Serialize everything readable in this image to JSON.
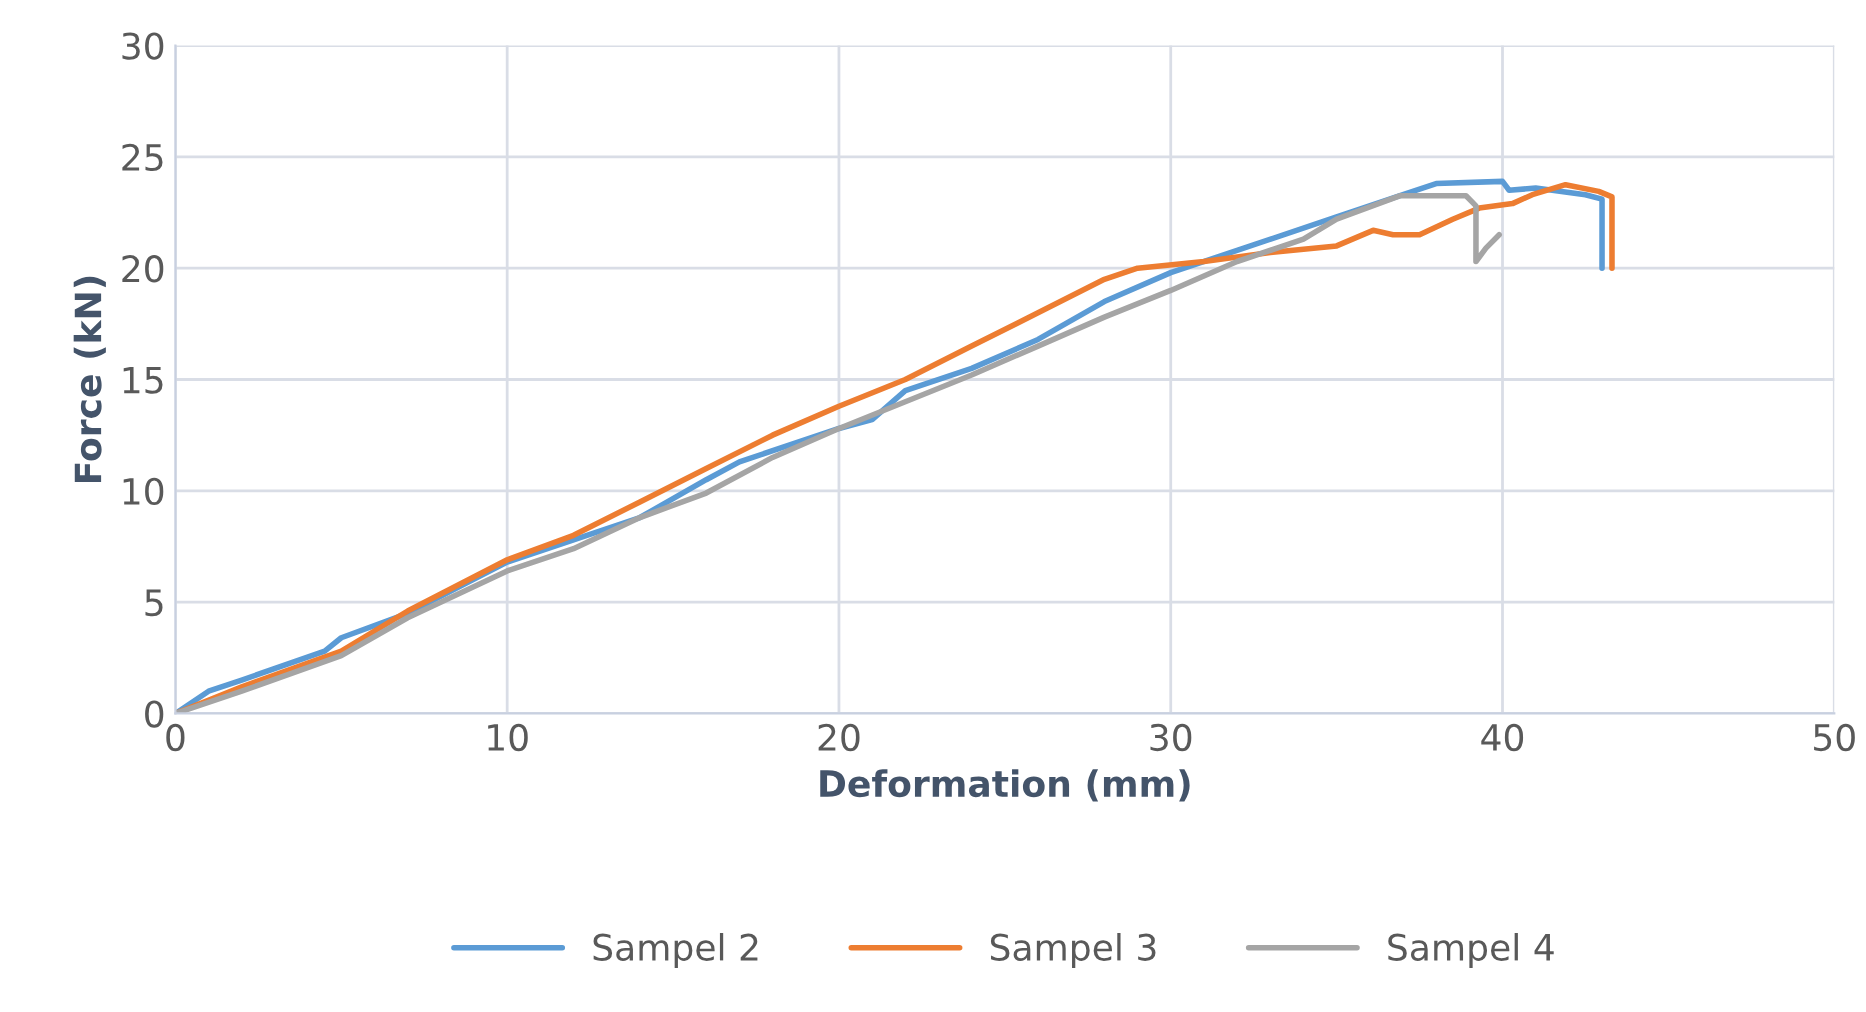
{
  "chart_data": {
    "type": "line",
    "xlabel": "Deformation (mm)",
    "ylabel": "Force (kN)",
    "xlim": [
      0,
      50
    ],
    "ylim": [
      0,
      30
    ],
    "xticks": [
      0,
      10,
      20,
      30,
      40,
      50
    ],
    "yticks": [
      0,
      5,
      10,
      15,
      20,
      25,
      30
    ],
    "grid": true,
    "legend": "bottom",
    "marker": "none",
    "line_style": "solid",
    "series": [
      {
        "name": "Sampel 2",
        "color": "#5b9bd5",
        "x": [
          0,
          1,
          2,
          4.5,
          5,
          7,
          10,
          12,
          14,
          16,
          17,
          20,
          21,
          22,
          24,
          26,
          28,
          30,
          32,
          35,
          37,
          38,
          40,
          40.2,
          41,
          42,
          42.5,
          43,
          43
        ],
        "values": [
          0,
          1,
          1.5,
          2.8,
          3.4,
          4.5,
          6.8,
          7.8,
          8.8,
          10.5,
          11.3,
          12.8,
          13.2,
          14.5,
          15.5,
          16.8,
          18.5,
          19.8,
          20.8,
          22.3,
          23.3,
          23.8,
          23.9,
          23.5,
          23.6,
          23.4,
          23.3,
          23.1,
          20
        ]
      },
      {
        "name": "Sampel 3",
        "color": "#ed7d31",
        "x": [
          0,
          2,
          5,
          7,
          10,
          12,
          14,
          16,
          18,
          20,
          22,
          24,
          26,
          28,
          29,
          31,
          33,
          35,
          36.1,
          36.7,
          37.5,
          38.5,
          39.3,
          40.3,
          40.9,
          41.9,
          42.9,
          43.3,
          43.3
        ],
        "values": [
          0,
          1.2,
          2.8,
          4.6,
          6.9,
          8.0,
          9.5,
          11,
          12.5,
          13.8,
          15,
          16.5,
          18,
          19.5,
          20,
          20.3,
          20.7,
          21,
          21.7,
          21.5,
          21.5,
          22.2,
          22.7,
          22.9,
          23.3,
          23.75,
          23.45,
          23.2,
          20
        ]
      },
      {
        "name": "Sampel 4",
        "color": "#a5a5a5",
        "x": [
          0,
          2,
          5,
          7,
          10,
          12,
          14,
          16,
          18,
          20,
          22,
          24,
          26,
          28,
          30,
          32,
          34,
          35,
          36.9,
          38.9,
          39.2,
          39.2,
          39.5,
          39.9
        ],
        "values": [
          0,
          1,
          2.6,
          4.3,
          6.4,
          7.4,
          8.8,
          9.9,
          11.5,
          12.8,
          14,
          15.2,
          16.5,
          17.8,
          19,
          20.3,
          21.3,
          22.2,
          23.25,
          23.25,
          22.8,
          20.3,
          20.9,
          21.5
        ]
      }
    ]
  }
}
